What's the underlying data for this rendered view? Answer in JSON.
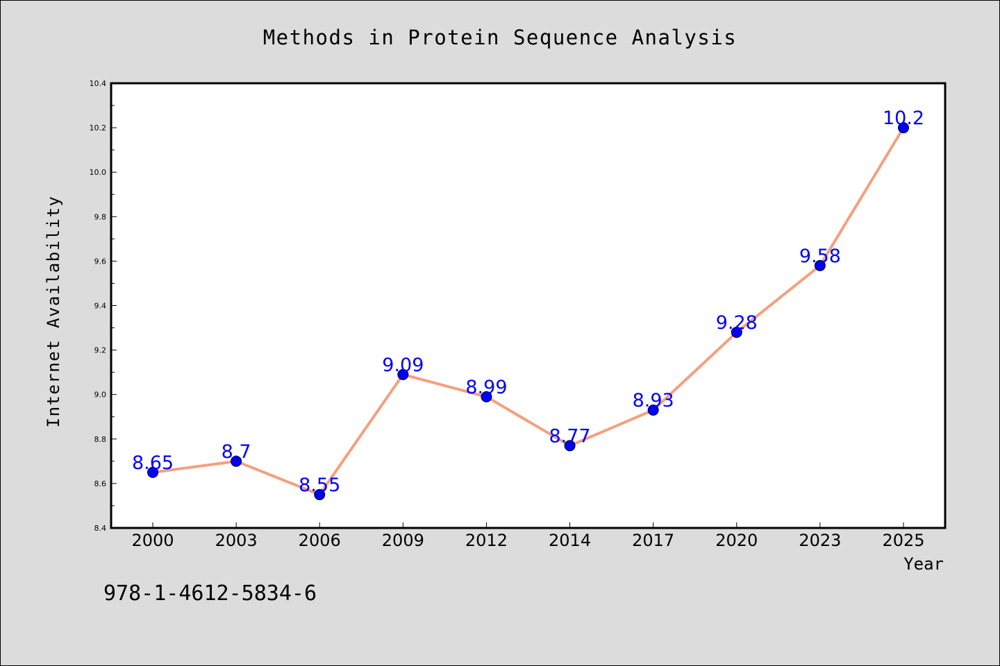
{
  "chart_data": {
    "type": "line",
    "title": "Methods in Protein Sequence Analysis",
    "xlabel": "Year",
    "ylabel": "Internet Availability",
    "categories": [
      "2000",
      "2003",
      "2006",
      "2009",
      "2012",
      "2014",
      "2017",
      "2020",
      "2023",
      "2025"
    ],
    "series": [
      {
        "values": [
          8.65,
          8.7,
          8.55,
          9.09,
          8.99,
          8.77,
          8.93,
          9.28,
          9.58,
          10.2
        ],
        "labels": [
          "8.65",
          "8.7",
          "8.55",
          "9.09",
          "8.99",
          "8.77",
          "8.93",
          "9.28",
          "9.58",
          "10.2"
        ],
        "line_color": "#f4a07e",
        "marker_color": "#0000ff",
        "label_color": "#0000ff"
      }
    ],
    "ylim": [
      8.4,
      10.4
    ],
    "yticks": [
      "8.4",
      "8.6",
      "8.8",
      "9.0",
      "9.2",
      "9.4",
      "9.6",
      "9.8",
      "10.0",
      "10.2",
      "10.4"
    ],
    "grid": false,
    "legend": "none"
  },
  "annotation": "978-1-4612-5834-6",
  "colors": {
    "background": "#dcdcdc",
    "plot_background": "#ffffff",
    "axis": "#000000"
  }
}
